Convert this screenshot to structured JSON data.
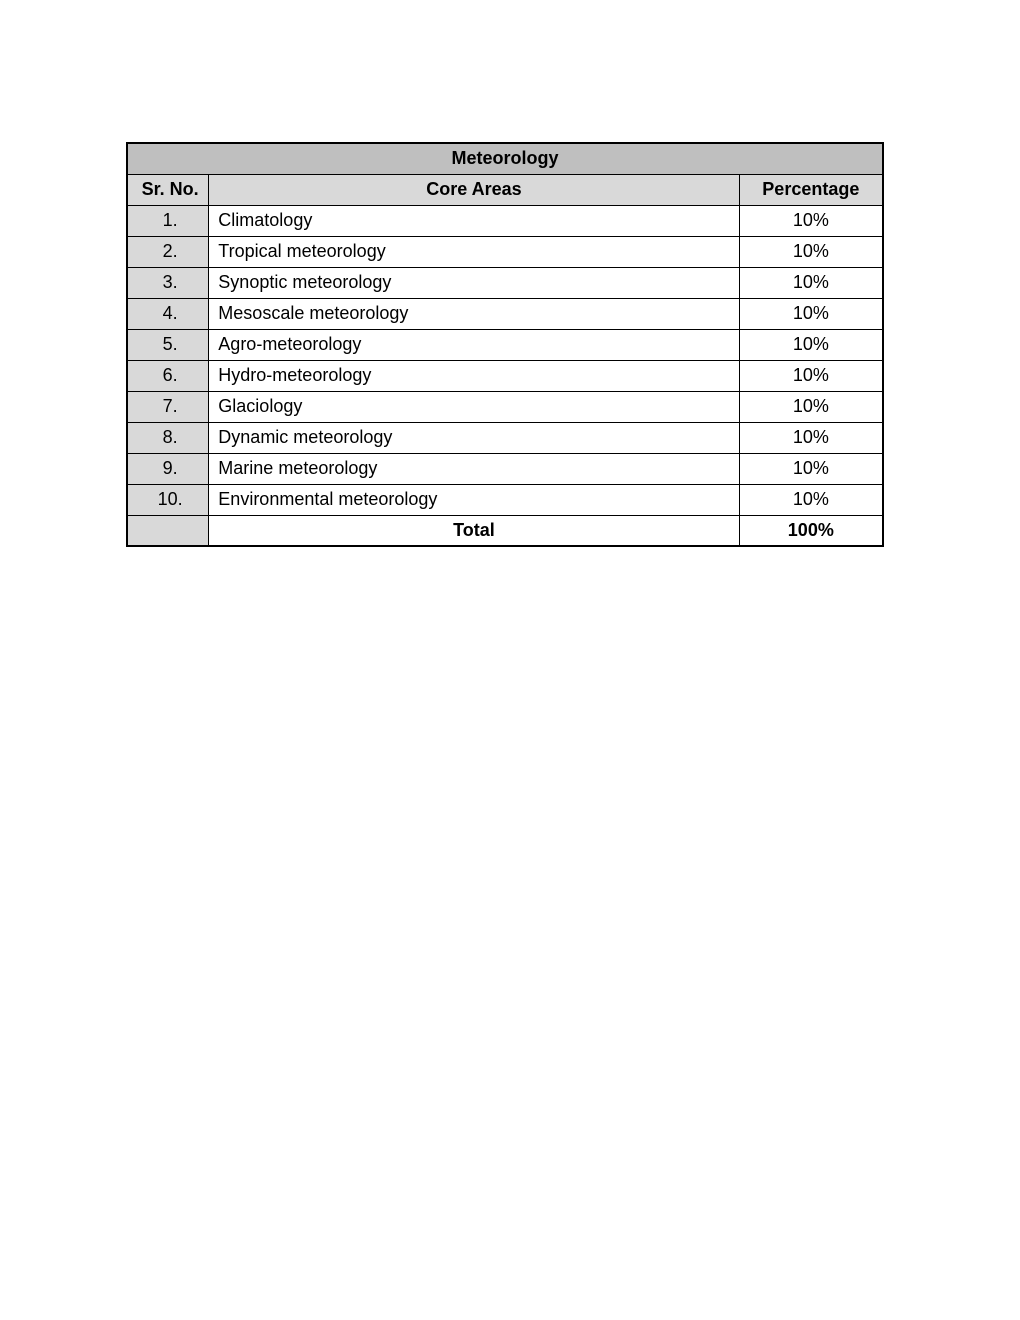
{
  "table": {
    "title": "Meteorology",
    "columns": [
      "Sr. No.",
      "Core Areas",
      "Percentage"
    ],
    "rows": [
      {
        "sn": "1.",
        "area": "Climatology",
        "pct": "10%"
      },
      {
        "sn": "2.",
        "area": "Tropical meteorology",
        "pct": "10%"
      },
      {
        "sn": "3.",
        "area": "Synoptic meteorology",
        "pct": "10%"
      },
      {
        "sn": "4.",
        "area": "Mesoscale meteorology",
        "pct": "10%"
      },
      {
        "sn": "5.",
        "area": "Agro-meteorology",
        "pct": "10%"
      },
      {
        "sn": "6.",
        "area": "Hydro-meteorology",
        "pct": "10%"
      },
      {
        "sn": "7.",
        "area": "Glaciology",
        "pct": "10%"
      },
      {
        "sn": "8.",
        "area": "Dynamic meteorology",
        "pct": "10%"
      },
      {
        "sn": "9.",
        "area": "Marine meteorology",
        "pct": "10%"
      },
      {
        "sn": "10.",
        "area": "Environmental meteorology",
        "pct": "10%"
      }
    ],
    "total": {
      "label": "Total",
      "pct": "100%"
    },
    "colors": {
      "title_bg": "#bfbfbf",
      "header_bg": "#d9d9d9",
      "sn_bg": "#d9d9d9",
      "body_bg": "#ffffff",
      "border": "#000000",
      "text": "#000000"
    },
    "fontsize": 18
  }
}
